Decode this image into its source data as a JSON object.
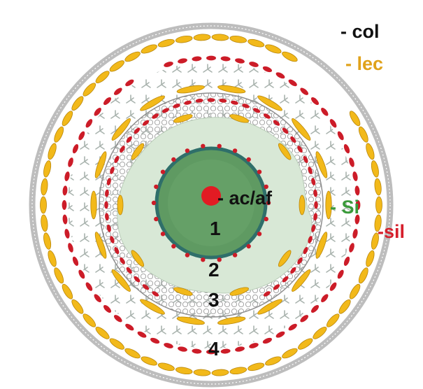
{
  "figure": {
    "labels": {
      "col": "- col",
      "lec": "- lec",
      "acaf": "- ac/af",
      "si": "- Si",
      "sil": "-sil"
    },
    "numbers": [
      "1",
      "2",
      "3",
      "4"
    ]
  },
  "colors": {
    "col": "#111111",
    "lec": "#e0a21b",
    "acaf": "#111111",
    "si": "#3a9a3a",
    "sil": "#d61f2b",
    "yellow_segment": "#f2b91a",
    "red_segment": "#cc1c28",
    "grey_shell": "#9a9a9a",
    "core_fill": "#5f9a62",
    "core_ring": "#2f6f6a",
    "inner_zone": "#d8e8d6",
    "center_dot": "#e21b23"
  }
}
